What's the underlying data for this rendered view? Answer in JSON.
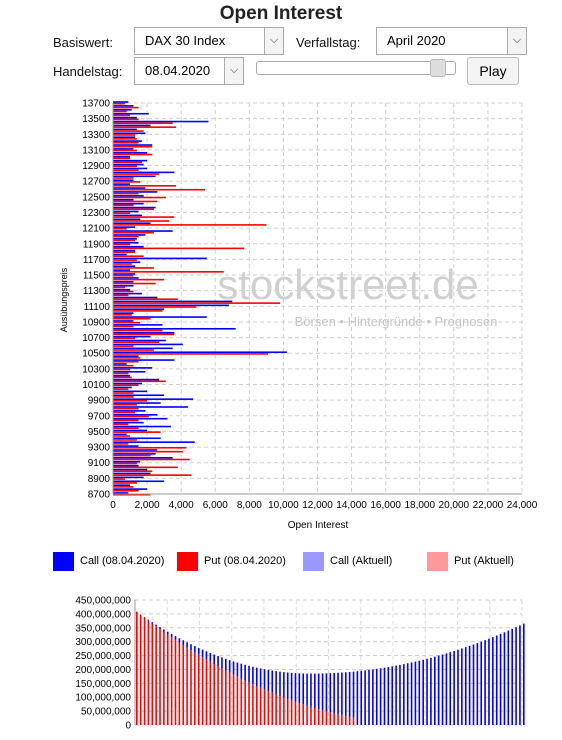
{
  "header": {
    "title": "Open Interest"
  },
  "controls": {
    "basiswert_label": "Basiswert:",
    "basiswert_value": "DAX 30 Index",
    "verfallstag_label": "Verfallstag:",
    "verfallstag_value": "April 2020",
    "handelstag_label": "Handelstag:",
    "handelstag_value": "08.04.2020",
    "play_label": "Play",
    "slider_level": 0.95
  },
  "watermark": {
    "brand": "stockstreet.de",
    "tagline": "Börsen • Hintergründe • Prognosen"
  },
  "legend": {
    "items": [
      {
        "label": "Call (08.04.2020)",
        "color": "#0000ff"
      },
      {
        "label": "Put (08.04.2020)",
        "color": "#ff0000"
      },
      {
        "label": "Call (Aktuell)",
        "color": "#9999ff"
      },
      {
        "label": "Put (Aktuell)",
        "color": "#ff9999"
      }
    ]
  },
  "chart_data": [
    {
      "type": "bar",
      "orientation": "horizontal",
      "ylabel": "Ausübungspreis",
      "xlabel": "Open Interest",
      "xlim": [
        0,
        24000
      ],
      "xticks": [
        "0",
        "2,000",
        "4,000",
        "6,000",
        "8,000",
        "10,000",
        "12,000",
        "14,000",
        "16,000",
        "18,000",
        "20,000",
        "22,000",
        "24,000"
      ],
      "yticks": [
        "13700",
        "13500",
        "13300",
        "13100",
        "12900",
        "12700",
        "12500",
        "12300",
        "12100",
        "11900",
        "11700",
        "11500",
        "11300",
        "11100",
        "10900",
        "10700",
        "10500",
        "10300",
        "10100",
        "9900",
        "9700",
        "9500",
        "9300",
        "9100",
        "8900",
        "8700"
      ],
      "strike_range": [
        8700,
        13700
      ],
      "strike_step": 50,
      "grid": true,
      "series": [
        {
          "name": "Call (08.04.2020)",
          "color": "#0000ff",
          "values": [
            900,
            2000,
            1000,
            3000,
            1800,
            2200,
            2000,
            1500,
            1600,
            3500,
            2500,
            2600,
            1500,
            4800,
            2800,
            800,
            2000,
            3400,
            1800,
            3200,
            2600,
            1900,
            4400,
            2800,
            4700,
            3000,
            2000,
            1100,
            1700,
            2700,
            1000,
            1900,
            2300,
            800,
            3600,
            1500,
            10200,
            3500,
            4100,
            3100,
            2200,
            3600,
            7200,
            2900,
            1200,
            5500,
            1200,
            3000,
            6800,
            7000,
            2600,
            1700,
            1000,
            1200,
            1200,
            1500,
            1300,
            1000,
            1300,
            1600,
            5500,
            800,
            1300,
            1800,
            1500,
            1400,
            1900,
            3500,
            1300,
            2200,
            1600,
            1700,
            1500,
            2500,
            1800,
            1200,
            1800,
            2600,
            1900,
            1000,
            1200,
            2500,
            3600,
            2000,
            1800,
            2000,
            1000,
            2000,
            1200,
            2300,
            1700,
            1300,
            1900,
            1400,
            2200,
            5600,
            1400,
            2100,
            1100,
            1200,
            900
          ]
        },
        {
          "name": "Put (08.04.2020)",
          "color": "#ff0000",
          "values": [
            2200,
            1500,
            1200,
            1400,
            700,
            4600,
            2300,
            3800,
            1400,
            4500,
            2200,
            4100,
            4300,
            900,
            1400,
            1000,
            2800,
            1500,
            900,
            1500,
            2100,
            1300,
            1500,
            1400,
            2000,
            1200,
            1200,
            900,
            1500,
            3100,
            1100,
            900,
            1000,
            1200,
            1500,
            1600,
            9100,
            2400,
            1200,
            2700,
            1300,
            3600,
            2900,
            1200,
            1600,
            2200,
            1100,
            2900,
            4900,
            9800,
            3800,
            900,
            1200,
            700,
            2500,
            3000,
            1200,
            6500,
            2400,
            1100,
            1400,
            1800,
            1300,
            7700,
            1000,
            1300,
            1500,
            2400,
            800,
            9000,
            3300,
            3600,
            1000,
            2400,
            1200,
            2600,
            3100,
            1500,
            5400,
            3700,
            1600,
            1200,
            2700,
            1500,
            1400,
            1700,
            1000,
            2300,
            1400,
            2300,
            1500,
            1400,
            1300,
            1800,
            3700,
            3500,
            1500,
            1000,
            800,
            1500,
            700
          ]
        },
        {
          "name": "Call (Aktuell)",
          "color": "#9999ff",
          "values": []
        },
        {
          "name": "Put (Aktuell)",
          "color": "#ff9999",
          "values": []
        }
      ]
    },
    {
      "type": "bar",
      "stacked": true,
      "ylim": [
        0,
        450000000
      ],
      "yticks": [
        "450,000,000",
        "400,000,000",
        "350,000,000",
        "300,000,000",
        "250,000,000",
        "200,000,000",
        "150,000,000",
        "100,000,000",
        "50,000,000",
        "0"
      ],
      "n_bars": 101,
      "min_index": 45,
      "min_total": 185000000,
      "left_total": 408000000,
      "right_total": 365000000,
      "series": [
        {
          "name": "Call",
          "color": "#0000ff"
        },
        {
          "name": "Put",
          "color": "#ff0000"
        }
      ]
    }
  ]
}
